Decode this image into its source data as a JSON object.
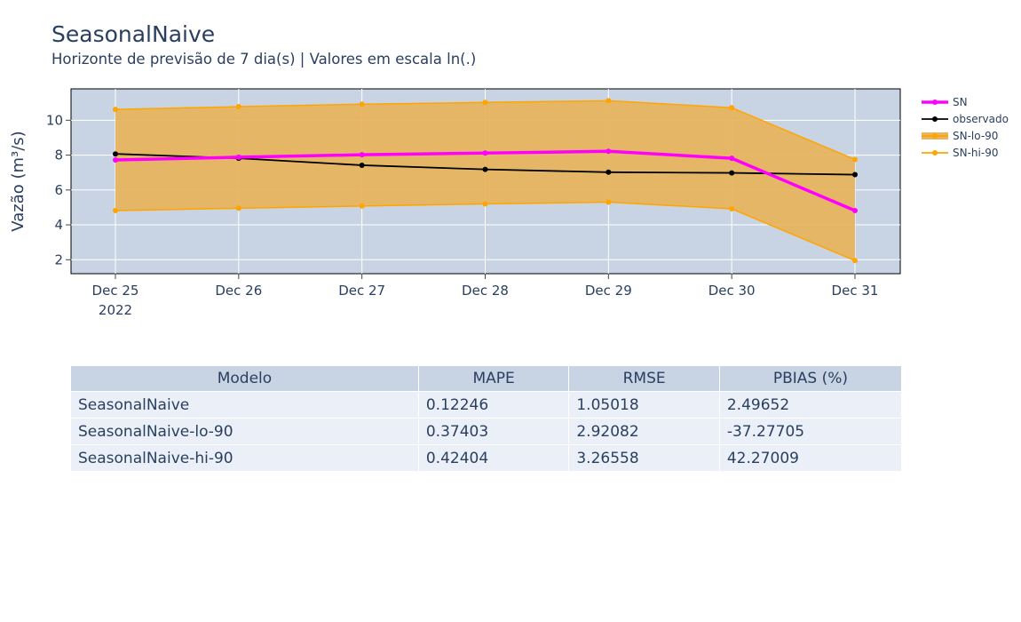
{
  "header": {
    "title": "SeasonalNaive",
    "subtitle": "Horizonte de previsão de 7 dia(s) | Valores em escala ln(.)"
  },
  "chart_data": {
    "type": "line",
    "title": "SeasonalNaive",
    "subtitle": "Horizonte de previsão de 7 dia(s) | Valores em escala ln(.)",
    "xlabel": "",
    "ylabel": "Vazão (m³/s)",
    "x": [
      "Dec 25",
      "Dec 26",
      "Dec 27",
      "Dec 28",
      "Dec 29",
      "Dec 30",
      "Dec 31"
    ],
    "x_year_label": "2022",
    "yticks": [
      2,
      4,
      6,
      8,
      10
    ],
    "ylim": [
      1.2,
      11.8
    ],
    "grid": true,
    "legend_position": "top-right",
    "series": [
      {
        "name": "SN",
        "color": "#ff00ff",
        "values": [
          7.72,
          7.88,
          8.02,
          8.12,
          8.22,
          7.82,
          4.82
        ]
      },
      {
        "name": "observado",
        "color": "#000000",
        "values": [
          8.07,
          7.82,
          7.42,
          7.18,
          7.02,
          6.98,
          6.88
        ]
      },
      {
        "name": "SN-lo-90",
        "color": "#ffa500",
        "values": [
          4.82,
          4.95,
          5.08,
          5.2,
          5.3,
          4.92,
          1.95
        ]
      },
      {
        "name": "SN-hi-90",
        "color": "#ffa500",
        "values": [
          10.62,
          10.78,
          10.92,
          11.02,
          11.12,
          10.72,
          7.75
        ]
      }
    ],
    "band_fill_color": "#e8b460"
  },
  "table": {
    "headers": [
      "Modelo",
      "MAPE",
      "RMSE",
      "PBIAS (%)"
    ],
    "rows": [
      [
        "SeasonalNaive",
        "0.12246",
        "1.05018",
        "2.49652"
      ],
      [
        "SeasonalNaive-lo-90",
        "0.37403",
        "2.92082",
        "-37.27705"
      ],
      [
        "SeasonalNaive-hi-90",
        "0.42404",
        "3.26558",
        "42.27009"
      ]
    ]
  }
}
